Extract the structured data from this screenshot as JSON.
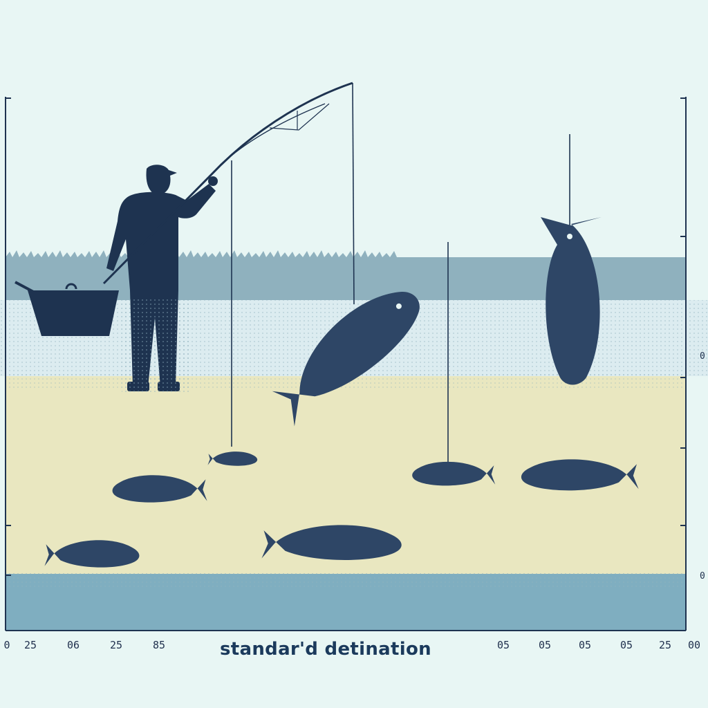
{
  "caption": "standar'd detination",
  "bottom_ticks": [
    "0",
    "25",
    "06",
    "25",
    "85",
    "05",
    "05",
    "05",
    "05",
    "25",
    "00"
  ],
  "right_ticks": [
    "0",
    "0"
  ],
  "colors": {
    "sky": "#e8f6f4",
    "grass": "#8fb1be",
    "water_band": "#dcecf0",
    "sand": "#e9e7c0",
    "deep_water": "#7faec0",
    "silhouette": "#1e3350",
    "fish": "#2e4666"
  }
}
